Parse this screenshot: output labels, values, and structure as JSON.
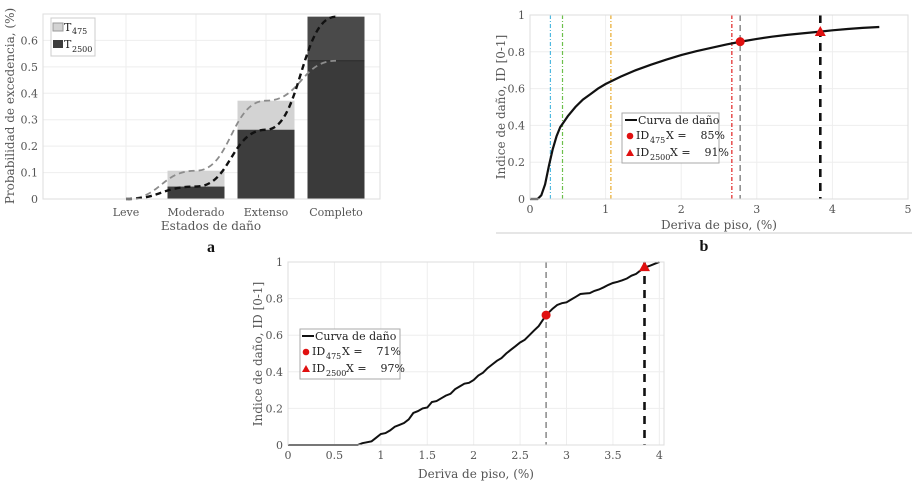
{
  "chart_data": [
    {
      "id": "a",
      "type": "bar",
      "panel_label": "a",
      "xlabel": "Estados de daño",
      "ylabel": "Probabilidad de excedencia, (%)",
      "categories": [
        "Leve",
        "Moderado",
        "Extenso",
        "Completo"
      ],
      "ylim": [
        0,
        0.7
      ],
      "yticks": [
        "0",
        "0.1",
        "0.2",
        "0.3",
        "0.4",
        "0.5",
        "0.6"
      ],
      "grid": true,
      "legend_position": "top-left",
      "series": [
        {
          "name": "T",
          "sub": "475",
          "color": "#d3d3d3",
          "values": [
            0,
            0.107,
            0.372,
            0.523
          ],
          "trend_color": "#8c8c8c"
        },
        {
          "name": "T",
          "sub": "2500",
          "color": "#3d3d3d",
          "values": [
            0,
            0.047,
            0.262,
            0.69
          ],
          "trend_color": "#111111"
        }
      ]
    },
    {
      "id": "b",
      "type": "line",
      "panel_label": "b",
      "xlabel": "Deriva de piso, (%)",
      "ylabel": "Indice de daño, ID [0-1]",
      "xlim": [
        0,
        5
      ],
      "ylim": [
        0,
        1
      ],
      "xticks": [
        "0",
        "1",
        "2",
        "3",
        "4",
        "5"
      ],
      "yticks": [
        "0",
        "0.2",
        "0.4",
        "0.6",
        "0.8",
        "1"
      ],
      "grid": true,
      "legend_position": "center",
      "curve": {
        "name": "Curva de daño",
        "x": [
          0,
          0.1,
          0.15,
          0.2,
          0.25,
          0.3,
          0.35,
          0.4,
          0.45,
          0.5,
          0.6,
          0.7,
          0.8,
          0.9,
          1.0,
          1.2,
          1.4,
          1.6,
          1.8,
          2.0,
          2.2,
          2.4,
          2.6,
          2.8,
          3.0,
          3.2,
          3.4,
          3.6,
          3.84,
          4.0,
          4.2,
          4.4,
          4.62
        ],
        "y": [
          0,
          0.0,
          0.02,
          0.08,
          0.18,
          0.27,
          0.34,
          0.39,
          0.42,
          0.45,
          0.5,
          0.54,
          0.57,
          0.6,
          0.625,
          0.665,
          0.7,
          0.73,
          0.757,
          0.782,
          0.803,
          0.822,
          0.84,
          0.856,
          0.87,
          0.882,
          0.892,
          0.9,
          0.91,
          0.917,
          0.924,
          0.93,
          0.935
        ]
      },
      "vlines": [
        {
          "x": 0.27,
          "color": "#4fb8e0",
          "style": "dashdot"
        },
        {
          "x": 0.43,
          "color": "#6cc04a",
          "style": "dashdot"
        },
        {
          "x": 1.07,
          "color": "#e8a92a",
          "style": "dashdot"
        },
        {
          "x": 2.67,
          "color": "#e02020",
          "style": "dashdot"
        },
        {
          "x": 2.78,
          "color": "#888888",
          "style": "dashed"
        },
        {
          "x": 3.84,
          "color": "#111111",
          "style": "dashed-thick"
        }
      ],
      "markers": [
        {
          "label": "ID",
          "sub": "475",
          "suffix": "X =    85%",
          "x": 2.78,
          "y": 0.855,
          "shape": "circle",
          "color": "#e01010"
        },
        {
          "label": "ID",
          "sub": "2500",
          "suffix": "X =    91%",
          "x": 3.84,
          "y": 0.91,
          "shape": "triangle",
          "color": "#e01010"
        }
      ]
    },
    {
      "id": "c",
      "type": "line",
      "panel_label": "",
      "xlabel": "Deriva de piso, (%)",
      "ylabel": "Indice de daño, ID [0-1]",
      "xlim": [
        0,
        4.05
      ],
      "ylim": [
        0,
        1
      ],
      "xticks": [
        "0",
        "0.5",
        "1",
        "1.5",
        "2",
        "2.5",
        "3",
        "3.5",
        "4"
      ],
      "yticks": [
        "0",
        "0.2",
        "0.4",
        "0.6",
        "0.8",
        "1"
      ],
      "grid": true,
      "legend_position": "left",
      "curve": {
        "name": "Curva de daño",
        "x": [
          0,
          0.75,
          0.8,
          0.9,
          0.95,
          1.0,
          1.05,
          1.1,
          1.15,
          1.2,
          1.25,
          1.3,
          1.35,
          1.4,
          1.45,
          1.5,
          1.55,
          1.6,
          1.65,
          1.7,
          1.75,
          1.8,
          1.85,
          1.9,
          1.95,
          2.0,
          2.05,
          2.1,
          2.15,
          2.2,
          2.25,
          2.3,
          2.35,
          2.4,
          2.45,
          2.5,
          2.55,
          2.6,
          2.65,
          2.7,
          2.78,
          2.85,
          2.9,
          2.95,
          3.0,
          3.05,
          3.1,
          3.15,
          3.2,
          3.25,
          3.3,
          3.35,
          3.4,
          3.45,
          3.5,
          3.55,
          3.6,
          3.65,
          3.7,
          3.75,
          3.8,
          3.84,
          3.9,
          3.95,
          4.0
        ],
        "y": [
          0,
          0,
          0.01,
          0.02,
          0.04,
          0.06,
          0.065,
          0.08,
          0.1,
          0.11,
          0.12,
          0.14,
          0.175,
          0.185,
          0.2,
          0.205,
          0.235,
          0.24,
          0.255,
          0.27,
          0.28,
          0.305,
          0.32,
          0.335,
          0.34,
          0.355,
          0.38,
          0.395,
          0.42,
          0.44,
          0.46,
          0.475,
          0.5,
          0.52,
          0.54,
          0.56,
          0.575,
          0.6,
          0.625,
          0.65,
          0.71,
          0.745,
          0.765,
          0.775,
          0.78,
          0.795,
          0.81,
          0.825,
          0.828,
          0.83,
          0.842,
          0.85,
          0.862,
          0.875,
          0.885,
          0.892,
          0.9,
          0.91,
          0.925,
          0.935,
          0.955,
          0.97,
          0.98,
          0.99,
          1.0
        ]
      },
      "vlines": [
        {
          "x": 2.78,
          "color": "#888888",
          "style": "dashed"
        },
        {
          "x": 3.84,
          "color": "#111111",
          "style": "dashed-thick"
        }
      ],
      "markers": [
        {
          "label": "ID",
          "sub": "475",
          "suffix": "X =    71%",
          "x": 2.78,
          "y": 0.71,
          "shape": "circle",
          "color": "#e01010"
        },
        {
          "label": "ID",
          "sub": "2500",
          "suffix": "X =    97%",
          "x": 3.84,
          "y": 0.975,
          "shape": "triangle",
          "color": "#e01010"
        }
      ]
    }
  ]
}
